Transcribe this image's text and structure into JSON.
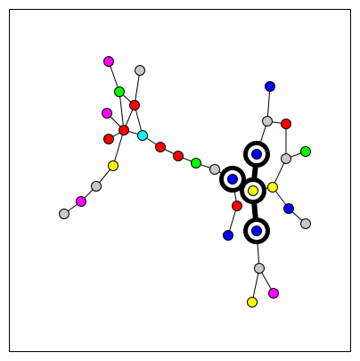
{
  "graph": {
    "colors": {
      "red": "#ff0000",
      "green": "#00ff00",
      "blue": "#0000ff",
      "yellow": "#ffff00",
      "cyan": "#00ffff",
      "magenta": "#ff00ff",
      "gray": "#c8c8c8",
      "edge": "#000000",
      "frame": "#000000"
    },
    "nodes": [
      {
        "id": "n1",
        "color": "magenta"
      },
      {
        "id": "n2",
        "color": "gray"
      },
      {
        "id": "n3",
        "color": "green"
      },
      {
        "id": "n4",
        "color": "red"
      },
      {
        "id": "n5",
        "color": "magenta"
      },
      {
        "id": "n6",
        "color": "red"
      },
      {
        "id": "n7",
        "color": "red"
      },
      {
        "id": "n8",
        "color": "cyan"
      },
      {
        "id": "n9",
        "color": "red"
      },
      {
        "id": "n10",
        "color": "red"
      },
      {
        "id": "n11",
        "color": "green"
      },
      {
        "id": "n12",
        "color": "gray"
      },
      {
        "id": "n13",
        "color": "yellow"
      },
      {
        "id": "n14",
        "color": "gray"
      },
      {
        "id": "n15",
        "color": "magenta"
      },
      {
        "id": "n16",
        "color": "gray"
      },
      {
        "id": "n17",
        "color": "blue"
      },
      {
        "id": "n18",
        "color": "gray"
      },
      {
        "id": "n19",
        "color": "red"
      },
      {
        "id": "n20",
        "color": "gray"
      },
      {
        "id": "n21",
        "color": "green"
      },
      {
        "id": "n22",
        "color": "blue",
        "ring": true
      },
      {
        "id": "n23",
        "color": "blue",
        "ring": true
      },
      {
        "id": "n24",
        "color": "yellow",
        "ring": true
      },
      {
        "id": "n25",
        "color": "yellow"
      },
      {
        "id": "n26",
        "color": "blue"
      },
      {
        "id": "n27",
        "color": "gray"
      },
      {
        "id": "n28",
        "color": "red"
      },
      {
        "id": "n29",
        "color": "blue"
      },
      {
        "id": "n30",
        "color": "blue",
        "ring": true
      },
      {
        "id": "n31",
        "color": "gray"
      },
      {
        "id": "n32",
        "color": "magenta"
      },
      {
        "id": "n33",
        "color": "yellow"
      }
    ],
    "edges": [
      {
        "from": "n1",
        "to": "n3"
      },
      {
        "from": "n2",
        "to": "n4"
      },
      {
        "from": "n3",
        "to": "n4"
      },
      {
        "from": "n3",
        "to": "n7"
      },
      {
        "from": "n4",
        "to": "n7"
      },
      {
        "from": "n4",
        "to": "n8"
      },
      {
        "from": "n5",
        "to": "n7"
      },
      {
        "from": "n6",
        "to": "n7"
      },
      {
        "from": "n7",
        "to": "n8"
      },
      {
        "from": "n7",
        "to": "n13"
      },
      {
        "from": "n8",
        "to": "n9"
      },
      {
        "from": "n9",
        "to": "n10"
      },
      {
        "from": "n10",
        "to": "n11"
      },
      {
        "from": "n11",
        "to": "n12"
      },
      {
        "from": "n12",
        "to": "n23"
      },
      {
        "from": "n13",
        "to": "n14"
      },
      {
        "from": "n14",
        "to": "n15"
      },
      {
        "from": "n15",
        "to": "n16"
      },
      {
        "from": "n17",
        "to": "n18"
      },
      {
        "from": "n18",
        "to": "n19"
      },
      {
        "from": "n18",
        "to": "n22"
      },
      {
        "from": "n19",
        "to": "n20"
      },
      {
        "from": "n20",
        "to": "n21"
      },
      {
        "from": "n20",
        "to": "n25"
      },
      {
        "from": "n22",
        "to": "n24",
        "bold": true
      },
      {
        "from": "n23",
        "to": "n24",
        "bold": true
      },
      {
        "from": "n24",
        "to": "n30",
        "bold": true
      },
      {
        "from": "n24",
        "to": "n25"
      },
      {
        "from": "n23",
        "to": "n28"
      },
      {
        "from": "n28",
        "to": "n29"
      },
      {
        "from": "n25",
        "to": "n26"
      },
      {
        "from": "n26",
        "to": "n27"
      },
      {
        "from": "n30",
        "to": "n31"
      },
      {
        "from": "n31",
        "to": "n32"
      },
      {
        "from": "n31",
        "to": "n33"
      }
    ]
  }
}
